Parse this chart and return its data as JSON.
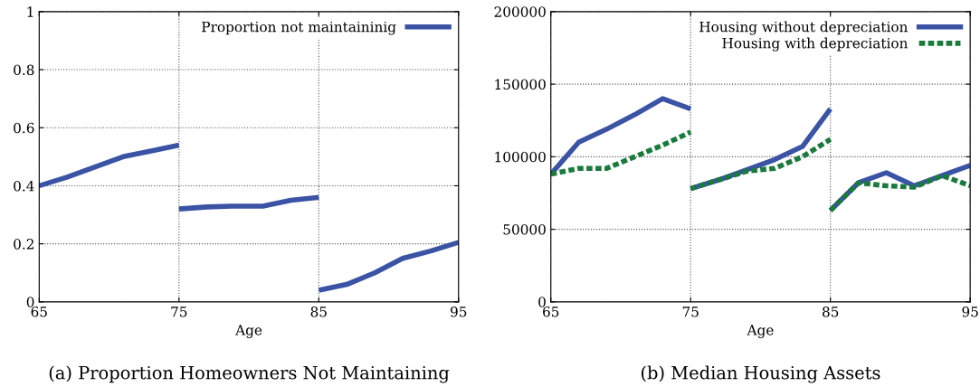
{
  "chart_data": [
    {
      "type": "line",
      "title": "(a) Proportion Homeowners Not Maintaining",
      "xlabel": "Age",
      "xlim": [
        65,
        95
      ],
      "xticks": [
        65,
        75,
        85,
        95
      ],
      "ylim": [
        0,
        1
      ],
      "yticks": [
        0,
        0.2,
        0.4,
        0.6,
        0.8,
        1
      ],
      "grid": true,
      "legend": "top right",
      "marker": "none",
      "x": [
        65,
        67,
        69,
        71,
        73,
        75,
        75,
        77,
        79,
        81,
        83,
        85,
        85,
        87,
        89,
        91,
        93,
        95
      ],
      "series": [
        {
          "name": "Proportion not maintaininig",
          "color": "#3a53a4",
          "line_style": "solid",
          "values": [
            0.4,
            0.43,
            0.465,
            0.5,
            0.52,
            0.54,
            0.32,
            0.327,
            0.33,
            0.33,
            0.35,
            0.36,
            0.04,
            0.06,
            0.1,
            0.15,
            0.175,
            0.205
          ]
        }
      ]
    },
    {
      "type": "line",
      "title": "(b) Median Housing Assets",
      "xlabel": "Age",
      "xlim": [
        65,
        95
      ],
      "xticks": [
        65,
        75,
        85,
        95
      ],
      "ylim": [
        0,
        200000
      ],
      "yticks": [
        0,
        50000,
        100000,
        150000,
        200000
      ],
      "grid": true,
      "legend": "top right",
      "marker": "none",
      "x": [
        65,
        67,
        69,
        71,
        73,
        75,
        75,
        77,
        79,
        81,
        83,
        85,
        85,
        87,
        89,
        91,
        93,
        95
      ],
      "series": [
        {
          "name": "Housing without depreciation",
          "color": "#3a53a4",
          "line_style": "solid",
          "values": [
            88000,
            110000,
            119000,
            129000,
            140000,
            133000,
            78000,
            84000,
            91000,
            98000,
            107000,
            133000,
            63000,
            82000,
            89000,
            80000,
            87000,
            94000
          ]
        },
        {
          "name": "Housing with depreciation",
          "color": "#1a7a3c",
          "line_style": "dotted",
          "values": [
            88000,
            92000,
            92000,
            100000,
            108000,
            117000,
            78000,
            84000,
            90000,
            92000,
            100000,
            112000,
            63000,
            82000,
            80000,
            79000,
            87000,
            80000
          ]
        }
      ]
    }
  ]
}
